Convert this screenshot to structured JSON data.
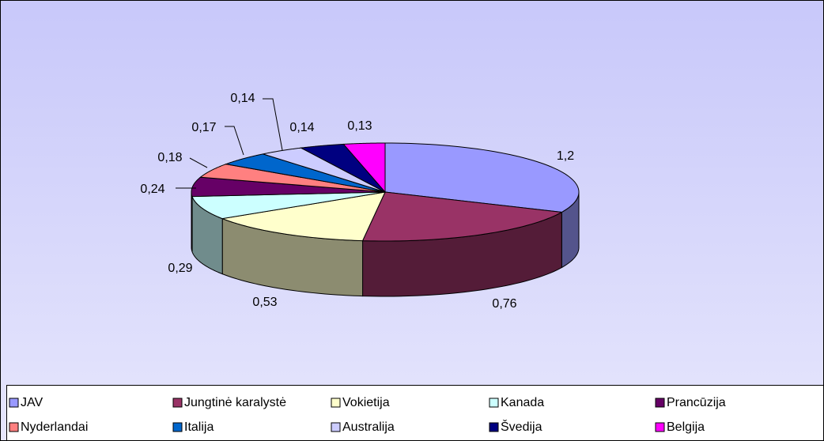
{
  "chart_data": {
    "type": "pie3d",
    "categories": [
      "JAV",
      "Jungtinė karalystė",
      "Vokietija",
      "Kanada",
      "Prancūzija",
      "Nyderlandai",
      "Italija",
      "Australija",
      "Švedija",
      "Belgija"
    ],
    "values": [
      1.2,
      0.76,
      0.53,
      0.29,
      0.24,
      0.18,
      0.17,
      0.14,
      0.14,
      0.13
    ],
    "value_labels": [
      "1,2",
      "0,76",
      "0,53",
      "0,29",
      "0,24",
      "0,18",
      "0,17",
      "0,14",
      "0,14",
      "0,13"
    ],
    "colors": [
      "#9999ff",
      "#993366",
      "#ffffcc",
      "#ccffff",
      "#660066",
      "#ff8080",
      "#0066cc",
      "#ccccff",
      "#000080",
      "#ff00ff"
    ],
    "legend": "bottom"
  }
}
